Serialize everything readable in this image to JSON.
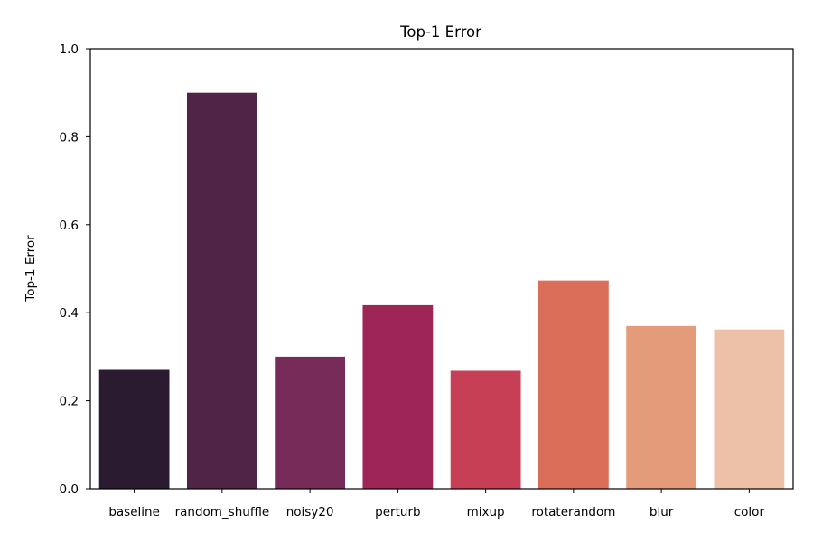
{
  "chart_data": {
    "type": "bar",
    "title": "Top-1 Error",
    "xlabel": "",
    "ylabel": "Top-1 Error",
    "ylim": [
      0,
      1.0
    ],
    "yticks": [
      "0.0",
      "0.2",
      "0.4",
      "0.6",
      "0.8",
      "1.0"
    ],
    "grid": false,
    "categories": [
      "baseline",
      "random_shuffle",
      "noisy20",
      "perturb",
      "mixup",
      "rotaterandom",
      "blur",
      "color"
    ],
    "values": [
      0.27,
      0.9,
      0.3,
      0.417,
      0.268,
      0.473,
      0.37,
      0.362
    ],
    "colors": [
      "#2a1b31",
      "#4f2447",
      "#772b58",
      "#9e2657",
      "#c73f54",
      "#db6e59",
      "#e49b79",
      "#ecc1a8"
    ]
  }
}
